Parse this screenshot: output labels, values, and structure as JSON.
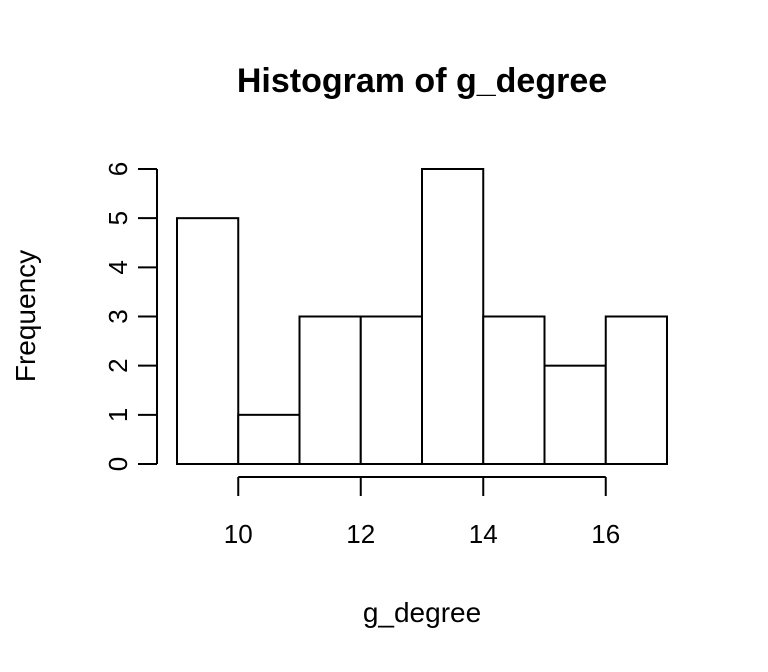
{
  "chart_data": {
    "type": "bar",
    "subtype": "histogram",
    "title": "Histogram of g_degree",
    "xlabel": "g_degree",
    "ylabel": "Frequency",
    "bin_edges": [
      9,
      10,
      11,
      12,
      13,
      14,
      15,
      16,
      17
    ],
    "values": [
      5,
      1,
      3,
      3,
      6,
      3,
      2,
      3
    ],
    "x_ticks": [
      10,
      12,
      14,
      16
    ],
    "y_ticks": [
      0,
      1,
      2,
      3,
      4,
      5,
      6
    ],
    "xlim": [
      9,
      17
    ],
    "ylim": [
      0,
      6
    ],
    "grid": false,
    "bar_fill": "#ffffff",
    "bar_stroke": "#000000"
  }
}
